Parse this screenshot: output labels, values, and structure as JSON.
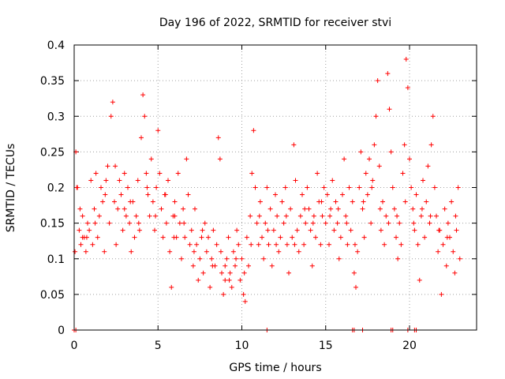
{
  "chart_data": {
    "type": "scatter",
    "title": "Day 196 of 2022, SRMTID for receiver stvi",
    "xlabel": "GPS time / hours",
    "ylabel": "SRMTID / TECUs",
    "xlim": [
      0,
      24
    ],
    "ylim": [
      0,
      0.4
    ],
    "xticks": [
      "0",
      "5",
      "10",
      "15",
      "20"
    ],
    "yticks": [
      "0",
      "0.05",
      "0.1",
      "0.15",
      "0.2",
      "0.25",
      "0.3",
      "0.35",
      "0.4"
    ],
    "grid": true,
    "legend": "none",
    "marker": "plus",
    "color": "#ff0000",
    "series": [
      {
        "name": "stvi",
        "points": [
          [
            0.1,
            0.25
          ],
          [
            0.2,
            0.2
          ],
          [
            0.3,
            0.14
          ],
          [
            0.4,
            0.12
          ],
          [
            0.5,
            0.16
          ],
          [
            0.6,
            0.13
          ],
          [
            0.7,
            0.11
          ],
          [
            0.8,
            0.15
          ],
          [
            0.9,
            0.14
          ],
          [
            1.0,
            0.21
          ],
          [
            1.1,
            0.12
          ],
          [
            1.2,
            0.17
          ],
          [
            1.3,
            0.22
          ],
          [
            1.4,
            0.13
          ],
          [
            1.5,
            0.16
          ],
          [
            1.6,
            0.2
          ],
          [
            1.7,
            0.18
          ],
          [
            1.8,
            0.11
          ],
          [
            1.9,
            0.21
          ],
          [
            2.0,
            0.23
          ],
          [
            2.1,
            0.15
          ],
          [
            2.2,
            0.3
          ],
          [
            2.3,
            0.32
          ],
          [
            2.4,
            0.18
          ],
          [
            2.5,
            0.12
          ],
          [
            2.6,
            0.17
          ],
          [
            2.7,
            0.21
          ],
          [
            2.8,
            0.19
          ],
          [
            2.9,
            0.14
          ],
          [
            3.0,
            0.22
          ],
          [
            3.1,
            0.16
          ],
          [
            3.2,
            0.2
          ],
          [
            3.3,
            0.15
          ],
          [
            3.4,
            0.11
          ],
          [
            3.5,
            0.18
          ],
          [
            3.6,
            0.13
          ],
          [
            3.7,
            0.16
          ],
          [
            3.8,
            0.21
          ],
          [
            3.9,
            0.14
          ],
          [
            4.0,
            0.27
          ],
          [
            4.1,
            0.33
          ],
          [
            4.2,
            0.3
          ],
          [
            4.3,
            0.22
          ],
          [
            4.4,
            0.19
          ],
          [
            4.5,
            0.16
          ],
          [
            4.6,
            0.24
          ],
          [
            4.7,
            0.18
          ],
          [
            4.8,
            0.14
          ],
          [
            4.9,
            0.2
          ],
          [
            5.0,
            0.28
          ],
          [
            5.1,
            0.22
          ],
          [
            5.2,
            0.17
          ],
          [
            5.3,
            0.13
          ],
          [
            5.4,
            0.19
          ],
          [
            5.5,
            0.15
          ],
          [
            5.6,
            0.21
          ],
          [
            5.7,
            0.11
          ],
          [
            5.8,
            0.06
          ],
          [
            5.9,
            0.16
          ],
          [
            6.0,
            0.18
          ],
          [
            6.1,
            0.13
          ],
          [
            6.2,
            0.22
          ],
          [
            6.3,
            0.15
          ],
          [
            6.4,
            0.1
          ],
          [
            6.5,
            0.17
          ],
          [
            6.6,
            0.13
          ],
          [
            6.7,
            0.24
          ],
          [
            6.8,
            0.19
          ],
          [
            6.9,
            0.12
          ],
          [
            7.0,
            0.14
          ],
          [
            7.1,
            0.09
          ],
          [
            7.2,
            0.17
          ],
          [
            7.3,
            0.12
          ],
          [
            7.4,
            0.07
          ],
          [
            7.5,
            0.1
          ],
          [
            7.6,
            0.13
          ],
          [
            7.7,
            0.08
          ],
          [
            7.8,
            0.15
          ],
          [
            7.9,
            0.11
          ],
          [
            8.0,
            0.13
          ],
          [
            8.1,
            0.06
          ],
          [
            8.2,
            0.1
          ],
          [
            8.3,
            0.14
          ],
          [
            8.4,
            0.09
          ],
          [
            8.5,
            0.12
          ],
          [
            8.6,
            0.27
          ],
          [
            8.7,
            0.24
          ],
          [
            8.8,
            0.08
          ],
          [
            8.9,
            0.05
          ],
          [
            9.0,
            0.07
          ],
          [
            9.1,
            0.1
          ],
          [
            9.2,
            0.13
          ],
          [
            9.3,
            0.08
          ],
          [
            9.4,
            0.06
          ],
          [
            9.5,
            0.11
          ],
          [
            9.6,
            0.09
          ],
          [
            9.7,
            0.14
          ],
          [
            9.8,
            0.12
          ],
          [
            9.9,
            0.07
          ],
          [
            10.0,
            0.1
          ],
          [
            10.1,
            0.05
          ],
          [
            10.2,
            0.04
          ],
          [
            10.3,
            0.13
          ],
          [
            10.4,
            0.09
          ],
          [
            10.5,
            0.16
          ],
          [
            10.6,
            0.22
          ],
          [
            10.7,
            0.28
          ],
          [
            10.8,
            0.2
          ],
          [
            10.9,
            0.15
          ],
          [
            11.0,
            0.12
          ],
          [
            11.1,
            0.18
          ],
          [
            11.2,
            0.13
          ],
          [
            11.3,
            0.1
          ],
          [
            11.4,
            0.15
          ],
          [
            11.5,
            0.2
          ],
          [
            11.6,
            0.12
          ],
          [
            11.7,
            0.17
          ],
          [
            11.8,
            0.09
          ],
          [
            11.9,
            0.14
          ],
          [
            12.0,
            0.19
          ],
          [
            12.1,
            0.16
          ],
          [
            12.2,
            0.11
          ],
          [
            12.3,
            0.13
          ],
          [
            12.4,
            0.18
          ],
          [
            12.5,
            0.15
          ],
          [
            12.6,
            0.2
          ],
          [
            12.7,
            0.12
          ],
          [
            12.8,
            0.08
          ],
          [
            12.9,
            0.17
          ],
          [
            13.0,
            0.13
          ],
          [
            13.1,
            0.26
          ],
          [
            13.2,
            0.21
          ],
          [
            13.3,
            0.14
          ],
          [
            13.4,
            0.11
          ],
          [
            13.5,
            0.16
          ],
          [
            13.6,
            0.19
          ],
          [
            13.7,
            0.12
          ],
          [
            13.8,
            0.15
          ],
          [
            13.9,
            0.2
          ],
          [
            14.0,
            0.17
          ],
          [
            14.1,
            0.14
          ],
          [
            14.2,
            0.09
          ],
          [
            14.3,
            0.16
          ],
          [
            14.4,
            0.13
          ],
          [
            14.5,
            0.22
          ],
          [
            14.6,
            0.18
          ],
          [
            14.7,
            0.12
          ],
          [
            14.8,
            0.16
          ],
          [
            14.9,
            0.2
          ],
          [
            15.0,
            0.15
          ],
          [
            15.1,
            0.19
          ],
          [
            15.2,
            0.12
          ],
          [
            15.3,
            0.17
          ],
          [
            15.4,
            0.21
          ],
          [
            15.5,
            0.14
          ],
          [
            15.6,
            0.18
          ],
          [
            15.7,
            0.15
          ],
          [
            15.8,
            0.1
          ],
          [
            15.9,
            0.13
          ],
          [
            16.0,
            0.19
          ],
          [
            16.1,
            0.24
          ],
          [
            16.2,
            0.16
          ],
          [
            16.3,
            0.12
          ],
          [
            16.4,
            0.2
          ],
          [
            16.5,
            0.14
          ],
          [
            16.6,
            0.18
          ],
          [
            16.7,
            0.08
          ],
          [
            16.8,
            0.06
          ],
          [
            16.9,
            0.11
          ],
          [
            17.0,
            0.2
          ],
          [
            17.1,
            0.25
          ],
          [
            17.2,
            0.17
          ],
          [
            17.3,
            0.13
          ],
          [
            17.4,
            0.22
          ],
          [
            17.5,
            0.19
          ],
          [
            17.6,
            0.24
          ],
          [
            17.7,
            0.15
          ],
          [
            17.8,
            0.21
          ],
          [
            17.9,
            0.26
          ],
          [
            18.0,
            0.3
          ],
          [
            18.1,
            0.35
          ],
          [
            18.2,
            0.23
          ],
          [
            18.3,
            0.14
          ],
          [
            18.4,
            0.18
          ],
          [
            18.5,
            0.12
          ],
          [
            18.6,
            0.16
          ],
          [
            18.7,
            0.36
          ],
          [
            18.8,
            0.31
          ],
          [
            18.9,
            0.25
          ],
          [
            19.0,
            0.2
          ],
          [
            19.1,
            0.17
          ],
          [
            19.2,
            0.13
          ],
          [
            19.3,
            0.1
          ],
          [
            19.4,
            0.15
          ],
          [
            19.5,
            0.12
          ],
          [
            19.6,
            0.22
          ],
          [
            19.7,
            0.26
          ],
          [
            19.8,
            0.38
          ],
          [
            19.9,
            0.34
          ],
          [
            20.0,
            0.24
          ],
          [
            20.1,
            0.2
          ],
          [
            20.2,
            0.17
          ],
          [
            20.3,
            0.14
          ],
          [
            20.4,
            0.19
          ],
          [
            20.5,
            0.12
          ],
          [
            20.6,
            0.07
          ],
          [
            20.7,
            0.16
          ],
          [
            20.8,
            0.21
          ],
          [
            20.9,
            0.13
          ],
          [
            21.0,
            0.18
          ],
          [
            21.1,
            0.23
          ],
          [
            21.2,
            0.15
          ],
          [
            21.3,
            0.26
          ],
          [
            21.4,
            0.3
          ],
          [
            21.5,
            0.2
          ],
          [
            21.6,
            0.16
          ],
          [
            21.7,
            0.11
          ],
          [
            21.8,
            0.14
          ],
          [
            21.9,
            0.05
          ],
          [
            22.0,
            0.12
          ],
          [
            22.1,
            0.17
          ],
          [
            22.2,
            0.09
          ],
          [
            22.3,
            0.15
          ],
          [
            22.4,
            0.13
          ],
          [
            22.5,
            0.18
          ],
          [
            22.6,
            0.11
          ],
          [
            22.7,
            0.08
          ],
          [
            22.8,
            0.14
          ],
          [
            22.9,
            0.2
          ],
          [
            23.0,
            0.1
          ],
          [
            0.05,
            0.11
          ],
          [
            0.15,
            0.2
          ],
          [
            0.35,
            0.17
          ],
          [
            0.75,
            0.13
          ],
          [
            1.25,
            0.15
          ],
          [
            1.85,
            0.19
          ],
          [
            2.45,
            0.23
          ],
          [
            3.35,
            0.18
          ],
          [
            3.85,
            0.15
          ],
          [
            4.35,
            0.2
          ],
          [
            4.85,
            0.16
          ],
          [
            5.45,
            0.19
          ],
          [
            5.95,
            0.13
          ],
          [
            6.55,
            0.15
          ],
          [
            7.15,
            0.11
          ],
          [
            7.65,
            0.14
          ],
          [
            8.25,
            0.09
          ],
          [
            8.75,
            0.11
          ],
          [
            9.25,
            0.07
          ],
          [
            9.65,
            0.1
          ],
          [
            10.15,
            0.08
          ],
          [
            10.55,
            0.12
          ],
          [
            11.05,
            0.16
          ],
          [
            11.55,
            0.14
          ],
          [
            12.05,
            0.12
          ],
          [
            12.65,
            0.16
          ],
          [
            13.15,
            0.12
          ],
          [
            13.75,
            0.17
          ],
          [
            14.25,
            0.15
          ],
          [
            14.75,
            0.18
          ],
          [
            15.25,
            0.16
          ],
          [
            15.75,
            0.17
          ],
          [
            16.25,
            0.15
          ],
          [
            16.75,
            0.12
          ],
          [
            17.25,
            0.18
          ],
          [
            17.75,
            0.2
          ],
          [
            18.25,
            0.17
          ],
          [
            18.75,
            0.15
          ],
          [
            19.25,
            0.16
          ],
          [
            19.75,
            0.18
          ],
          [
            20.25,
            0.15
          ],
          [
            20.75,
            0.17
          ],
          [
            21.25,
            0.16
          ],
          [
            21.75,
            0.14
          ],
          [
            22.25,
            0.13
          ],
          [
            22.75,
            0.16
          ],
          [
            0.5,
            0.13
          ],
          [
            3.0,
            0.17
          ],
          [
            6.0,
            0.16
          ],
          [
            9.0,
            0.09
          ],
          [
            0.0,
            0.0
          ],
          [
            0.1,
            0.0
          ],
          [
            11.5,
            0.0
          ],
          [
            16.6,
            0.0
          ],
          [
            16.7,
            0.0
          ],
          [
            17.2,
            0.0
          ],
          [
            18.9,
            0.0
          ],
          [
            19.0,
            0.0
          ],
          [
            19.9,
            0.0
          ],
          [
            20.3,
            0.0
          ],
          [
            20.4,
            0.0
          ]
        ]
      }
    ]
  }
}
